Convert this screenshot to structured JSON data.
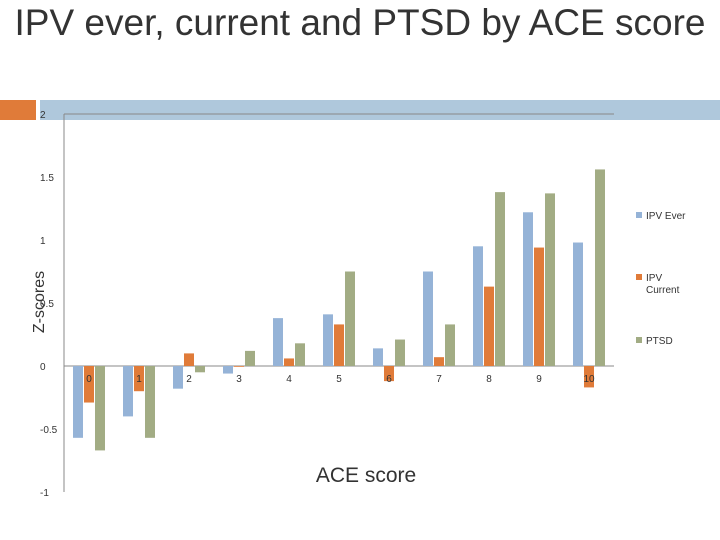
{
  "title": "IPV ever, current and PTSD by ACE score",
  "colors": {
    "band_left": "#E07B39",
    "band_right": "#AFC8DC",
    "ipv_ever": "#95B3D7",
    "ipv_current": "#E07B39",
    "ptsd": "#A2AC84"
  },
  "chart_data": {
    "type": "bar",
    "title": "IPV ever, current and PTSD by ACE score",
    "xlabel": "ACE score",
    "ylabel": "Z-scores",
    "ylim": [
      -1,
      2
    ],
    "yticks": [
      "2",
      "1.5",
      "1",
      "0.5",
      "0",
      "-0.5",
      "-1"
    ],
    "ytick_values": [
      2,
      1.5,
      1,
      0.5,
      0,
      -0.5,
      -1
    ],
    "grid": false,
    "legend_position": "right",
    "categories": [
      "0",
      "1",
      "2",
      "3",
      "4",
      "5",
      "6",
      "7",
      "8",
      "9",
      "10"
    ],
    "series": [
      {
        "name": "IPV Ever",
        "values": [
          -0.57,
          -0.4,
          -0.18,
          -0.06,
          0.38,
          0.41,
          0.14,
          0.75,
          0.95,
          1.22,
          0.98
        ]
      },
      {
        "name": "IPV Current",
        "values": [
          -0.29,
          -0.2,
          0.1,
          0.0,
          0.06,
          0.33,
          -0.12,
          0.07,
          0.63,
          0.94,
          -0.17
        ]
      },
      {
        "name": "PTSD",
        "values": [
          -0.67,
          -0.57,
          -0.05,
          0.12,
          0.18,
          0.75,
          0.21,
          0.33,
          1.38,
          1.37,
          1.56
        ]
      }
    ]
  }
}
